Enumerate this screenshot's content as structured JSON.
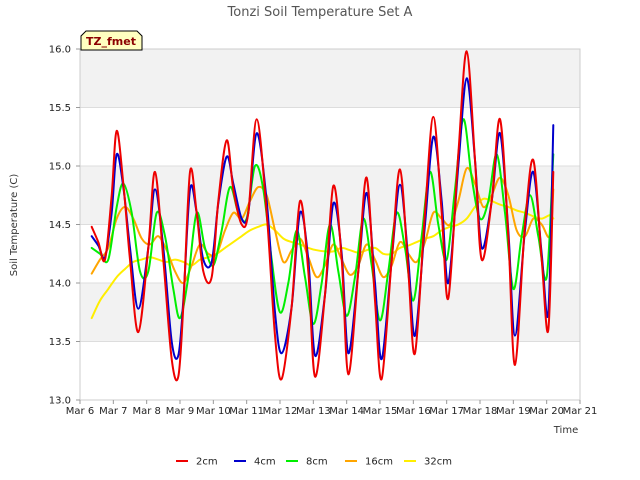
{
  "chart_data": {
    "type": "line",
    "title": "Tonzi Soil Temperature Set A",
    "xlabel": "Time",
    "ylabel": "Soil Temperature (C)",
    "annotation": "TZ_fmet",
    "xlim": [
      6,
      21
    ],
    "ylim": [
      13.0,
      16.0
    ],
    "x_ticks": [
      6,
      7,
      8,
      9,
      10,
      11,
      12,
      13,
      14,
      15,
      16,
      17,
      18,
      19,
      20,
      21
    ],
    "x_tick_labels": [
      "Mar 6",
      "Mar 7",
      "Mar 8",
      "Mar 9",
      "Mar 10",
      "Mar 11",
      "Mar 12",
      "Mar 13",
      "Mar 14",
      "Mar 15",
      "Mar 16",
      "Mar 17",
      "Mar 18",
      "Mar 19",
      "Mar 20",
      "Mar 21"
    ],
    "y_ticks": [
      13.0,
      13.5,
      14.0,
      14.5,
      15.0,
      15.5,
      16.0
    ],
    "y_tick_labels": [
      "13.0",
      "13.5",
      "14.0",
      "14.5",
      "15.0",
      "15.5",
      "16.0"
    ],
    "grid": true,
    "legend_position": "bottom",
    "series": [
      {
        "name": "2cm",
        "color": "#ee0000",
        "x": [
          6.35,
          6.55,
          6.75,
          6.95,
          7.1,
          7.3,
          7.5,
          7.75,
          8.05,
          8.25,
          8.5,
          8.75,
          8.95,
          9.1,
          9.3,
          9.5,
          9.7,
          9.95,
          10.15,
          10.4,
          10.6,
          10.85,
          11.05,
          11.3,
          11.6,
          11.85,
          12.05,
          12.35,
          12.6,
          12.85,
          13.05,
          13.35,
          13.6,
          13.85,
          14.05,
          14.35,
          14.6,
          14.85,
          15.05,
          15.35,
          15.6,
          15.85,
          16.05,
          16.35,
          16.6,
          16.85,
          17.05,
          17.35,
          17.6,
          17.85,
          18.05,
          18.35,
          18.6,
          18.85,
          19.05,
          19.35,
          19.6,
          19.85,
          20.05,
          20.2
        ],
        "y": [
          14.48,
          14.35,
          14.2,
          14.75,
          15.3,
          14.85,
          14.2,
          13.58,
          14.3,
          14.95,
          14.2,
          13.35,
          13.2,
          13.8,
          14.95,
          14.6,
          14.1,
          14.05,
          14.7,
          15.22,
          14.8,
          14.5,
          14.6,
          15.4,
          14.6,
          13.55,
          13.18,
          13.8,
          14.7,
          14.1,
          13.2,
          13.9,
          14.83,
          14.2,
          13.22,
          14.1,
          14.9,
          13.85,
          13.18,
          14.2,
          14.97,
          14.1,
          13.4,
          14.6,
          15.42,
          14.6,
          13.87,
          15.1,
          15.98,
          15.05,
          14.2,
          14.7,
          15.4,
          14.4,
          13.3,
          14.5,
          15.05,
          14.2,
          13.6,
          14.95
        ]
      },
      {
        "name": "4cm",
        "color": "#0000cc",
        "x": [
          6.35,
          6.55,
          6.75,
          6.95,
          7.1,
          7.3,
          7.5,
          7.75,
          8.05,
          8.25,
          8.5,
          8.75,
          8.95,
          9.1,
          9.3,
          9.5,
          9.7,
          9.95,
          10.15,
          10.4,
          10.6,
          10.85,
          11.05,
          11.3,
          11.6,
          11.85,
          12.05,
          12.35,
          12.6,
          12.85,
          13.05,
          13.35,
          13.6,
          13.85,
          14.05,
          14.35,
          14.6,
          14.85,
          15.05,
          15.35,
          15.6,
          15.85,
          16.05,
          16.35,
          16.6,
          16.85,
          17.05,
          17.35,
          17.6,
          17.85,
          18.05,
          18.35,
          18.6,
          18.85,
          19.05,
          19.35,
          19.6,
          19.85,
          20.05,
          20.2
        ],
        "y": [
          14.4,
          14.32,
          14.22,
          14.6,
          15.1,
          14.82,
          14.3,
          13.78,
          14.3,
          14.8,
          14.3,
          13.5,
          13.38,
          13.85,
          14.8,
          14.6,
          14.2,
          14.18,
          14.68,
          15.08,
          14.85,
          14.55,
          14.6,
          15.28,
          14.7,
          13.75,
          13.4,
          13.8,
          14.6,
          14.2,
          13.38,
          13.9,
          14.68,
          14.25,
          13.4,
          14.1,
          14.77,
          14.0,
          13.35,
          14.2,
          14.84,
          14.2,
          13.55,
          14.5,
          15.25,
          14.7,
          14.0,
          15.0,
          15.75,
          15.05,
          14.3,
          14.7,
          15.28,
          14.45,
          13.55,
          14.45,
          14.95,
          14.25,
          13.75,
          15.35
        ]
      },
      {
        "name": "8cm",
        "color": "#00ee00",
        "x": [
          6.35,
          6.6,
          6.85,
          7.1,
          7.3,
          7.55,
          7.8,
          8.05,
          8.3,
          8.55,
          8.8,
          9.0,
          9.25,
          9.5,
          9.75,
          10.0,
          10.25,
          10.5,
          10.75,
          11.0,
          11.25,
          11.5,
          11.75,
          12.0,
          12.25,
          12.5,
          12.75,
          13.0,
          13.25,
          13.5,
          13.75,
          14.0,
          14.25,
          14.5,
          14.75,
          15.0,
          15.25,
          15.5,
          15.75,
          16.0,
          16.25,
          16.5,
          16.75,
          17.0,
          17.25,
          17.5,
          17.75,
          18.0,
          18.25,
          18.5,
          18.75,
          19.0,
          19.25,
          19.5,
          19.75,
          20.0,
          20.2
        ],
        "y": [
          14.3,
          14.25,
          14.2,
          14.65,
          14.85,
          14.6,
          14.1,
          14.1,
          14.6,
          14.4,
          13.95,
          13.7,
          14.05,
          14.6,
          14.3,
          14.15,
          14.45,
          14.82,
          14.6,
          14.55,
          15.0,
          14.8,
          14.2,
          13.75,
          14.0,
          14.45,
          14.05,
          13.65,
          14.0,
          14.5,
          14.1,
          13.72,
          14.05,
          14.55,
          14.15,
          13.68,
          14.1,
          14.6,
          14.3,
          13.85,
          14.4,
          14.95,
          14.5,
          14.2,
          14.8,
          15.4,
          14.9,
          14.55,
          14.7,
          15.1,
          14.6,
          13.95,
          14.4,
          14.75,
          14.4,
          14.05,
          15.1
        ]
      },
      {
        "name": "16cm",
        "color": "#ffa500",
        "x": [
          6.35,
          6.6,
          6.85,
          7.1,
          7.35,
          7.6,
          7.85,
          8.1,
          8.35,
          8.6,
          8.85,
          9.1,
          9.35,
          9.6,
          9.85,
          10.1,
          10.35,
          10.6,
          10.85,
          11.1,
          11.35,
          11.6,
          11.85,
          12.1,
          12.35,
          12.6,
          12.85,
          13.1,
          13.35,
          13.6,
          13.85,
          14.1,
          14.35,
          14.6,
          14.85,
          15.1,
          15.35,
          15.6,
          15.85,
          16.1,
          16.35,
          16.6,
          16.85,
          17.1,
          17.35,
          17.6,
          17.85,
          18.1,
          18.35,
          18.6,
          18.85,
          19.1,
          19.35,
          19.6,
          19.85,
          20.1,
          20.2
        ],
        "y": [
          14.08,
          14.2,
          14.3,
          14.55,
          14.65,
          14.55,
          14.38,
          14.33,
          14.4,
          14.28,
          14.1,
          14.0,
          14.15,
          14.33,
          14.25,
          14.25,
          14.45,
          14.6,
          14.55,
          14.7,
          14.82,
          14.75,
          14.45,
          14.18,
          14.28,
          14.38,
          14.22,
          14.05,
          14.15,
          14.33,
          14.2,
          14.07,
          14.15,
          14.33,
          14.2,
          14.05,
          14.15,
          14.35,
          14.25,
          14.18,
          14.35,
          14.6,
          14.55,
          14.5,
          14.7,
          14.98,
          14.85,
          14.65,
          14.75,
          14.9,
          14.75,
          14.45,
          14.4,
          14.55,
          14.5,
          14.4,
          14.8
        ]
      },
      {
        "name": "32cm",
        "color": "#ffee00",
        "x": [
          6.35,
          6.6,
          6.85,
          7.1,
          7.35,
          7.6,
          7.85,
          8.1,
          8.35,
          8.6,
          8.85,
          9.1,
          9.35,
          9.6,
          9.85,
          10.1,
          10.35,
          10.6,
          10.85,
          11.1,
          11.35,
          11.6,
          11.85,
          12.1,
          12.35,
          12.6,
          12.85,
          13.1,
          13.35,
          13.6,
          13.85,
          14.1,
          14.35,
          14.6,
          14.85,
          15.1,
          15.35,
          15.6,
          15.85,
          16.1,
          16.35,
          16.6,
          16.85,
          17.1,
          17.35,
          17.6,
          17.85,
          18.1,
          18.35,
          18.6,
          18.85,
          19.1,
          19.35,
          19.6,
          19.85,
          20.1,
          20.2
        ],
        "y": [
          13.7,
          13.85,
          13.95,
          14.05,
          14.12,
          14.18,
          14.2,
          14.22,
          14.2,
          14.18,
          14.2,
          14.18,
          14.15,
          14.2,
          14.22,
          14.25,
          14.3,
          14.35,
          14.4,
          14.45,
          14.48,
          14.5,
          14.45,
          14.38,
          14.35,
          14.33,
          14.3,
          14.28,
          14.27,
          14.27,
          14.3,
          14.28,
          14.26,
          14.28,
          14.3,
          14.25,
          14.25,
          14.3,
          14.32,
          14.35,
          14.38,
          14.4,
          14.45,
          14.48,
          14.5,
          14.55,
          14.65,
          14.72,
          14.7,
          14.67,
          14.65,
          14.62,
          14.6,
          14.57,
          14.55,
          14.58,
          14.55
        ]
      }
    ]
  }
}
